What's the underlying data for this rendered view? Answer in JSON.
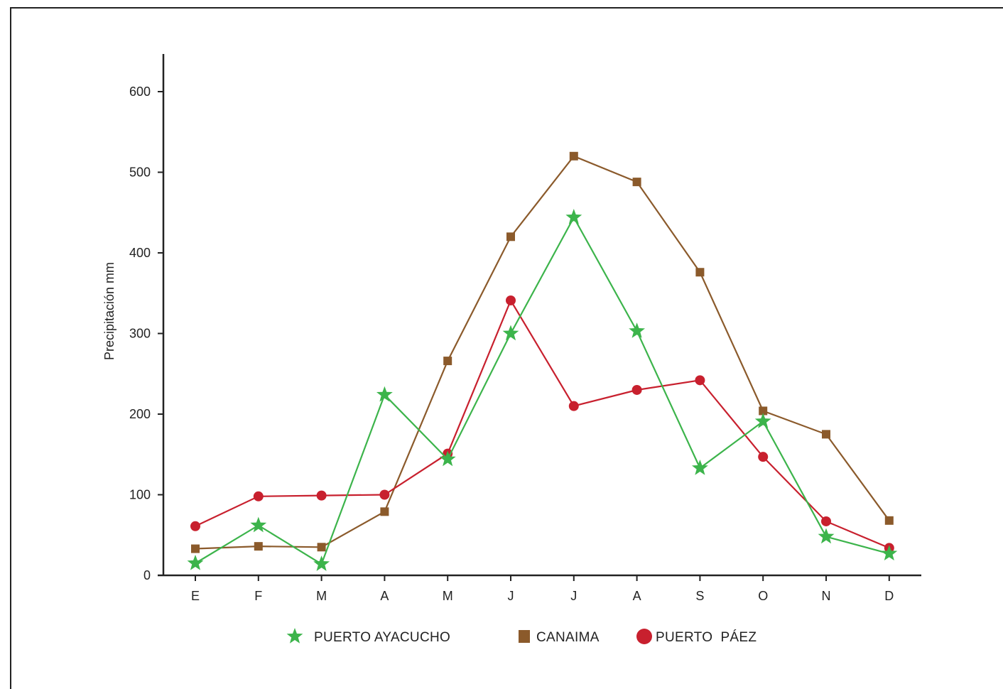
{
  "chart_data": {
    "type": "line",
    "categories": [
      "E",
      "F",
      "M",
      "A",
      "M",
      "J",
      "J",
      "A",
      "S",
      "O",
      "N",
      "D"
    ],
    "ylabel": "Precipitación mm",
    "xlabel": "",
    "ylim": [
      0,
      640
    ],
    "yticks": [
      0,
      100,
      200,
      300,
      400,
      500,
      600
    ],
    "grid": false,
    "legend_position": "bottom",
    "series": [
      {
        "name": "PUERTO AYACUCHO",
        "marker": "star",
        "color": "#3cb44b",
        "values": [
          15,
          62,
          14,
          224,
          144,
          300,
          444,
          303,
          133,
          191,
          48,
          27
        ]
      },
      {
        "name": "CANAIMA",
        "marker": "square",
        "color": "#8b5a2b",
        "values": [
          33,
          36,
          35,
          79,
          266,
          420,
          520,
          488,
          376,
          204,
          175,
          68
        ]
      },
      {
        "name": "PUERTO  PÁEZ",
        "marker": "circle",
        "color": "#c8202e",
        "values": [
          61,
          98,
          99,
          100,
          151,
          341,
          210,
          230,
          242,
          147,
          67,
          34
        ]
      }
    ]
  }
}
